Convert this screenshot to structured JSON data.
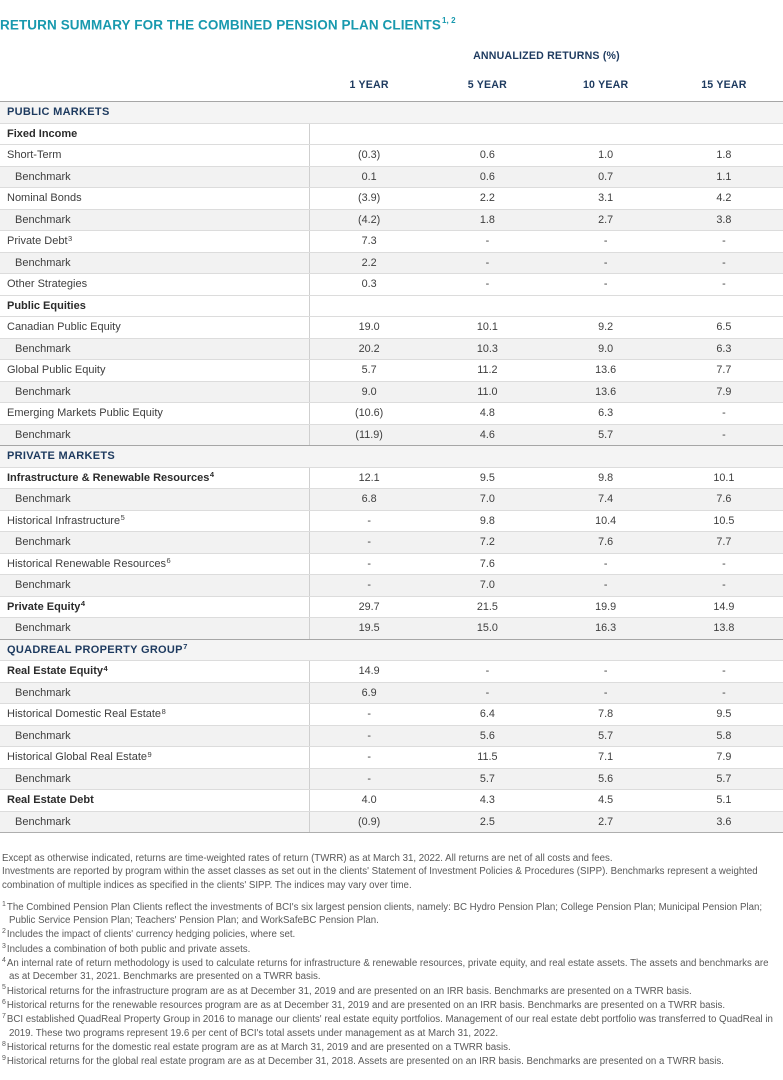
{
  "title": {
    "text": "RETURN SUMMARY FOR THE COMBINED PENSION PLAN CLIENTS",
    "superscript": "1, 2"
  },
  "table": {
    "header_group": "ANNUALIZED RETURNS (%)",
    "columns": [
      "1 YEAR",
      "5 YEAR",
      "10 YEAR",
      "15 YEAR"
    ],
    "rows": [
      {
        "type": "section",
        "label": "PUBLIC MARKETS"
      },
      {
        "type": "subsection",
        "label": "Fixed Income"
      },
      {
        "type": "asset",
        "label": "Short-Term",
        "values": [
          "(0.3)",
          "0.6",
          "1.0",
          "1.8"
        ]
      },
      {
        "type": "benchmark",
        "label": "Benchmark",
        "values": [
          "0.1",
          "0.6",
          "0.7",
          "1.1"
        ]
      },
      {
        "type": "asset",
        "label": "Nominal Bonds",
        "values": [
          "(3.9)",
          "2.2",
          "3.1",
          "4.2"
        ]
      },
      {
        "type": "benchmark",
        "label": "Benchmark",
        "values": [
          "(4.2)",
          "1.8",
          "2.7",
          "3.8"
        ]
      },
      {
        "type": "asset",
        "label": "Private Debt",
        "sup": "3",
        "values": [
          "7.3",
          "-",
          "-",
          "-"
        ]
      },
      {
        "type": "benchmark",
        "label": "Benchmark",
        "values": [
          "2.2",
          "-",
          "-",
          "-"
        ]
      },
      {
        "type": "asset",
        "label": "Other Strategies",
        "values": [
          "0.3",
          "-",
          "-",
          "-"
        ]
      },
      {
        "type": "subsection",
        "label": "Public Equities"
      },
      {
        "type": "asset",
        "label": "Canadian Public Equity",
        "values": [
          "19.0",
          "10.1",
          "9.2",
          "6.5"
        ]
      },
      {
        "type": "benchmark",
        "label": "Benchmark",
        "values": [
          "20.2",
          "10.3",
          "9.0",
          "6.3"
        ]
      },
      {
        "type": "asset",
        "label": "Global Public Equity",
        "values": [
          "5.7",
          "11.2",
          "13.6",
          "7.7"
        ]
      },
      {
        "type": "benchmark",
        "label": "Benchmark",
        "values": [
          "9.0",
          "11.0",
          "13.6",
          "7.9"
        ]
      },
      {
        "type": "asset",
        "label": "Emerging Markets Public Equity",
        "values": [
          "(10.6)",
          "4.8",
          "6.3",
          "-"
        ]
      },
      {
        "type": "benchmark",
        "label": "Benchmark",
        "values": [
          "(11.9)",
          "4.6",
          "5.7",
          "-"
        ]
      },
      {
        "type": "section",
        "label": "PRIVATE MARKETS"
      },
      {
        "type": "asset-bold",
        "label": "Infrastructure & Renewable Resources",
        "sup": "4",
        "values": [
          "12.1",
          "9.5",
          "9.8",
          "10.1"
        ]
      },
      {
        "type": "benchmark",
        "label": "Benchmark",
        "values": [
          "6.8",
          "7.0",
          "7.4",
          "7.6"
        ]
      },
      {
        "type": "asset",
        "label": "Historical Infrastructure",
        "sup": "5",
        "values": [
          "-",
          "9.8",
          "10.4",
          "10.5"
        ]
      },
      {
        "type": "benchmark",
        "label": "Benchmark",
        "values": [
          "-",
          "7.2",
          "7.6",
          "7.7"
        ]
      },
      {
        "type": "asset",
        "label": "Historical Renewable Resources",
        "sup": "6",
        "values": [
          "-",
          "7.6",
          "-",
          "-"
        ]
      },
      {
        "type": "benchmark",
        "label": "Benchmark",
        "values": [
          "-",
          "7.0",
          "-",
          "-"
        ]
      },
      {
        "type": "asset-bold",
        "label": "Private Equity",
        "sup": "4",
        "values": [
          "29.7",
          "21.5",
          "19.9",
          "14.9"
        ]
      },
      {
        "type": "benchmark",
        "label": "Benchmark",
        "values": [
          "19.5",
          "15.0",
          "16.3",
          "13.8"
        ]
      },
      {
        "type": "section",
        "label": "QUADREAL PROPERTY GROUP",
        "sup": "7"
      },
      {
        "type": "asset-bold",
        "label": "Real Estate Equity",
        "sup": "4",
        "values": [
          "14.9",
          "-",
          "-",
          "-"
        ]
      },
      {
        "type": "benchmark",
        "label": "Benchmark",
        "values": [
          "6.9",
          "-",
          "-",
          "-"
        ]
      },
      {
        "type": "asset",
        "label": "Historical Domestic Real Estate",
        "sup": "8",
        "values": [
          "-",
          "6.4",
          "7.8",
          "9.5"
        ]
      },
      {
        "type": "benchmark",
        "label": "Benchmark",
        "values": [
          "-",
          "5.6",
          "5.7",
          "5.8"
        ]
      },
      {
        "type": "asset",
        "label": "Historical Global Real Estate",
        "sup": "9",
        "values": [
          "-",
          "11.5",
          "7.1",
          "7.9"
        ]
      },
      {
        "type": "benchmark",
        "label": "Benchmark",
        "values": [
          "-",
          "5.7",
          "5.6",
          "5.7"
        ]
      },
      {
        "type": "asset-bold",
        "label": "Real Estate Debt",
        "values": [
          "4.0",
          "4.3",
          "4.5",
          "5.1"
        ]
      },
      {
        "type": "benchmark",
        "label": "Benchmark",
        "values": [
          "(0.9)",
          "2.5",
          "2.7",
          "3.6"
        ]
      }
    ]
  },
  "footnotes": {
    "preamble": [
      "Except as otherwise indicated, returns are time-weighted rates of return (TWRR) as at March 31, 2022. All returns are net of all costs and fees.",
      "Investments are reported by program within the asset classes as set out in the clients' Statement of Investment Policies & Procedures (SIPP). Benchmarks represent a weighted combination of multiple indices as specified in the clients' SIPP. The indices may vary over time."
    ],
    "notes": [
      {
        "marker": "1",
        "text": "The Combined Pension Plan Clients reflect the investments of BCI's six largest pension clients, namely: BC Hydro Pension Plan; College Pension Plan; Municipal Pension Plan; Public Service Pension Plan; Teachers' Pension Plan; and WorkSafeBC Pension Plan."
      },
      {
        "marker": "2",
        "text": "Includes the impact of clients' currency hedging policies, where set."
      },
      {
        "marker": "3",
        "text": "Includes a combination of both public and private assets."
      },
      {
        "marker": "4",
        "text": "An internal rate of return methodology is used to calculate returns for infrastructure & renewable resources, private equity, and real estate assets. The assets and benchmarks are as at December 31, 2021. Benchmarks are presented on a TWRR basis."
      },
      {
        "marker": "5",
        "text": "Historical returns for the infrastructure program are as at December 31, 2019 and are presented on an IRR basis. Benchmarks are presented on a TWRR basis."
      },
      {
        "marker": "6",
        "text": "Historical returns for the renewable resources program are as at December 31, 2019 and are presented on an IRR basis. Benchmarks are presented on a TWRR basis."
      },
      {
        "marker": "7",
        "text": "BCI established QuadReal Property Group in 2016 to manage our clients' real estate equity portfolios. Management of our real estate debt portfolio was transferred to QuadReal in 2019. These two programs represent 19.6 per cent of BCI's total assets under management as at March 31, 2022."
      },
      {
        "marker": "8",
        "text": "Historical returns for the domestic real estate program are as at March 31, 2019 and are presented on a TWRR basis."
      },
      {
        "marker": "9",
        "text": "Historical returns for the global real estate program are as at December 31, 2018. Assets are presented on an IRR basis. Benchmarks are presented on a TWRR basis."
      }
    ]
  },
  "colors": {
    "accent_teal": "#1899ae",
    "header_navy": "#1d3a5f",
    "body_text": "#3e3e3e",
    "benchmark_row_bg": "#f2f2f2",
    "section_row_bg": "#f4f4f4",
    "row_border": "#dcdcdc",
    "section_border": "#a6a6a6",
    "footnote_text": "#595959"
  }
}
